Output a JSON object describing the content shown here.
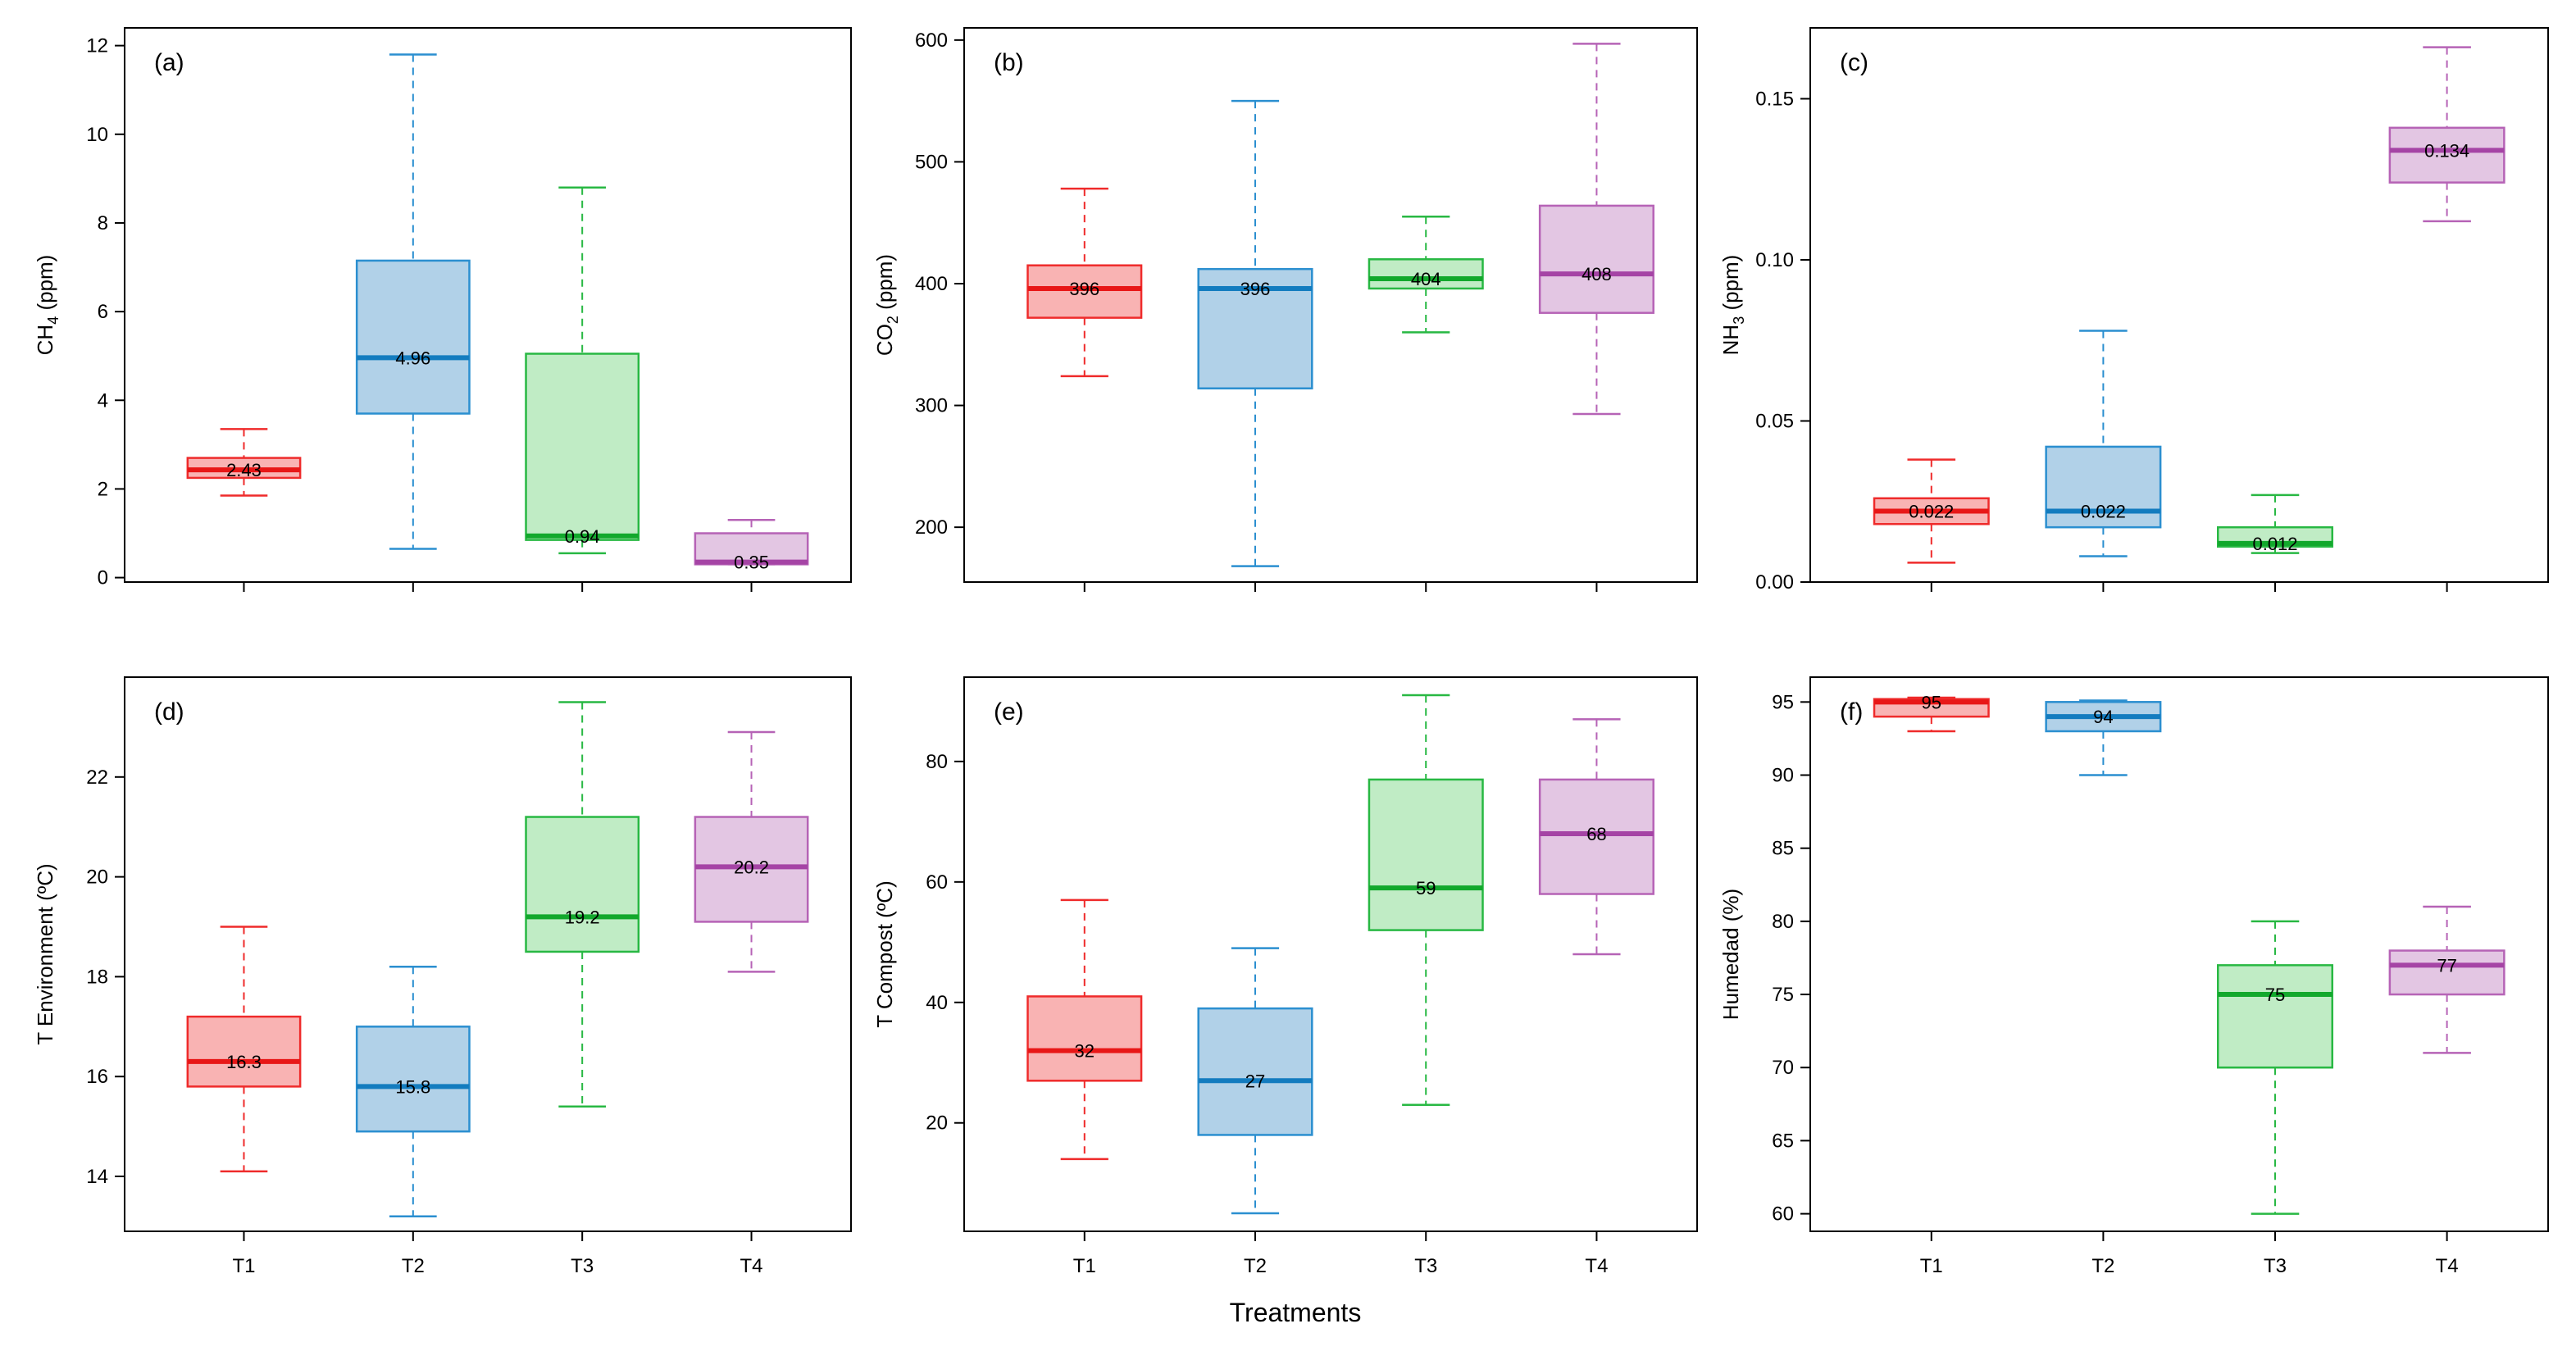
{
  "figure": {
    "xlabel": "Treatments"
  },
  "chart_data": [
    {
      "type": "boxplot",
      "panel": "(a)",
      "title": "",
      "ylabel": "CH",
      "ylabel_sub": "4",
      "ylabel_unit": " (ppm)",
      "ylim": [
        -0.1,
        12.4
      ],
      "yticks": [
        0,
        2,
        4,
        6,
        8,
        10,
        12
      ],
      "ytick_labels": [
        "0",
        "2",
        "4",
        "6",
        "8",
        "10",
        "12"
      ],
      "show_x_labels": false,
      "categories": [
        "T1",
        "T2",
        "T3",
        "T4"
      ],
      "boxes": [
        {
          "label": "T1",
          "min": 1.85,
          "q1": 2.25,
          "median": 2.43,
          "q3": 2.7,
          "max": 3.35,
          "median_label": "2.43"
        },
        {
          "label": "T2",
          "min": 0.65,
          "q1": 3.7,
          "median": 4.96,
          "q3": 7.15,
          "max": 11.8,
          "median_label": "4.96"
        },
        {
          "label": "T3",
          "min": 0.55,
          "q1": 0.85,
          "median": 0.94,
          "q3": 5.05,
          "max": 8.8,
          "median_label": "0.94"
        },
        {
          "label": "T4",
          "min": 0.3,
          "q1": 0.3,
          "median": 0.35,
          "q3": 1.0,
          "max": 1.3,
          "median_label": "0.35"
        }
      ]
    },
    {
      "type": "boxplot",
      "panel": "(b)",
      "title": "",
      "ylabel": "CO",
      "ylabel_sub": "2",
      "ylabel_unit": " (ppm)",
      "ylim": [
        155,
        610
      ],
      "yticks": [
        200,
        300,
        400,
        500,
        600
      ],
      "ytick_labels": [
        "200",
        "300",
        "400",
        "500",
        "600"
      ],
      "show_x_labels": false,
      "categories": [
        "T1",
        "T2",
        "T3",
        "T4"
      ],
      "boxes": [
        {
          "label": "T1",
          "min": 324,
          "q1": 372,
          "median": 396,
          "q3": 415,
          "max": 478,
          "median_label": "396"
        },
        {
          "label": "T2",
          "min": 168,
          "q1": 314,
          "median": 396,
          "q3": 412,
          "max": 550,
          "median_label": "396"
        },
        {
          "label": "T3",
          "min": 360,
          "q1": 396,
          "median": 404,
          "q3": 420,
          "max": 455,
          "median_label": "404"
        },
        {
          "label": "T4",
          "min": 293,
          "q1": 376,
          "median": 408,
          "q3": 464,
          "max": 597,
          "median_label": "408"
        }
      ]
    },
    {
      "type": "boxplot",
      "panel": "(c)",
      "title": "",
      "ylabel": "NH",
      "ylabel_sub": "3",
      "ylabel_unit": " (ppm)",
      "ylim": [
        0,
        0.172
      ],
      "yticks": [
        0.0,
        0.05,
        0.1,
        0.15
      ],
      "ytick_labels": [
        "0.00",
        "0.05",
        "0.10",
        "0.15"
      ],
      "show_x_labels": false,
      "categories": [
        "T1",
        "T2",
        "T3",
        "T4"
      ],
      "boxes": [
        {
          "label": "T1",
          "min": 0.006,
          "q1": 0.018,
          "median": 0.022,
          "q3": 0.026,
          "max": 0.038,
          "median_label": "0.022"
        },
        {
          "label": "T2",
          "min": 0.008,
          "q1": 0.017,
          "median": 0.022,
          "q3": 0.042,
          "max": 0.078,
          "median_label": "0.022"
        },
        {
          "label": "T3",
          "min": 0.009,
          "q1": 0.011,
          "median": 0.012,
          "q3": 0.017,
          "max": 0.027,
          "median_label": "0.012"
        },
        {
          "label": "T4",
          "min": 0.112,
          "q1": 0.124,
          "median": 0.134,
          "q3": 0.141,
          "max": 0.166,
          "median_label": "0.134"
        }
      ]
    },
    {
      "type": "boxplot",
      "panel": "(d)",
      "title": "",
      "ylabel": "T Environment (ºC)",
      "ylabel_sub": "",
      "ylabel_unit": "",
      "ylim": [
        12.9,
        24.0
      ],
      "yticks": [
        14,
        16,
        18,
        20,
        22
      ],
      "ytick_labels": [
        "14",
        "16",
        "18",
        "20",
        "22"
      ],
      "show_x_labels": true,
      "categories": [
        "T1",
        "T2",
        "T3",
        "T4"
      ],
      "boxes": [
        {
          "label": "T1",
          "min": 14.1,
          "q1": 15.8,
          "median": 16.3,
          "q3": 17.2,
          "max": 19.0,
          "median_label": "16.3"
        },
        {
          "label": "T2",
          "min": 13.2,
          "q1": 14.9,
          "median": 15.8,
          "q3": 17.0,
          "max": 18.2,
          "median_label": "15.8"
        },
        {
          "label": "T3",
          "min": 15.4,
          "q1": 18.5,
          "median": 19.2,
          "q3": 21.2,
          "max": 23.5,
          "median_label": "19.2"
        },
        {
          "label": "T4",
          "min": 18.1,
          "q1": 19.1,
          "median": 20.2,
          "q3": 21.2,
          "max": 22.9,
          "median_label": "20.2"
        }
      ]
    },
    {
      "type": "boxplot",
      "panel": "(e)",
      "title": "",
      "ylabel": "T Compost (ºC)",
      "ylabel_sub": "",
      "ylabel_unit": "",
      "ylim": [
        2,
        94
      ],
      "yticks": [
        20,
        40,
        60,
        80
      ],
      "ytick_labels": [
        "20",
        "40",
        "60",
        "80"
      ],
      "show_x_labels": true,
      "categories": [
        "T1",
        "T2",
        "T3",
        "T4"
      ],
      "boxes": [
        {
          "label": "T1",
          "min": 14,
          "q1": 27,
          "median": 32,
          "q3": 41,
          "max": 57,
          "median_label": "32"
        },
        {
          "label": "T2",
          "min": 5,
          "q1": 18,
          "median": 27,
          "q3": 39,
          "max": 49,
          "median_label": "27"
        },
        {
          "label": "T3",
          "min": 23,
          "q1": 52,
          "median": 59,
          "q3": 77,
          "max": 91,
          "median_label": "59"
        },
        {
          "label": "T4",
          "min": 48,
          "q1": 58,
          "median": 68,
          "q3": 77,
          "max": 87,
          "median_label": "68"
        }
      ]
    },
    {
      "type": "boxplot",
      "panel": "(f)",
      "title": "",
      "ylabel": "Humedad (%)",
      "ylabel_sub": "",
      "ylabel_unit": "",
      "ylim": [
        58.8,
        96.7
      ],
      "yticks": [
        60,
        65,
        70,
        75,
        80,
        85,
        90,
        95
      ],
      "ytick_labels": [
        "60",
        "65",
        "70",
        "75",
        "80",
        "85",
        "90",
        "95"
      ],
      "show_x_labels": true,
      "categories": [
        "T1",
        "T2",
        "T3",
        "T4"
      ],
      "boxes": [
        {
          "label": "T1",
          "min": 93,
          "q1": 94,
          "median": 95,
          "q3": 95.2,
          "max": 95.3,
          "median_label": "95"
        },
        {
          "label": "T2",
          "min": 90,
          "q1": 93,
          "median": 94,
          "q3": 95,
          "max": 95.1,
          "median_label": "94"
        },
        {
          "label": "T3",
          "min": 60,
          "q1": 70,
          "median": 75,
          "q3": 77,
          "max": 80,
          "median_label": "75"
        },
        {
          "label": "T4",
          "min": 71,
          "q1": 75,
          "median": 77,
          "q3": 78,
          "max": 81,
          "median_label": "77"
        }
      ]
    }
  ],
  "colors": {
    "T1": {
      "fill": "#f9b3b3",
      "stroke": "#ef2b2b",
      "median": "#e81717"
    },
    "T2": {
      "fill": "#b1d1e8",
      "stroke": "#2b8fd0",
      "median": "#137cbf"
    },
    "T3": {
      "fill": "#c0ecc5",
      "stroke": "#28b843",
      "median": "#12a82c"
    },
    "T4": {
      "fill": "#e3c6e3",
      "stroke": "#b663b6",
      "median": "#a544a5"
    }
  }
}
